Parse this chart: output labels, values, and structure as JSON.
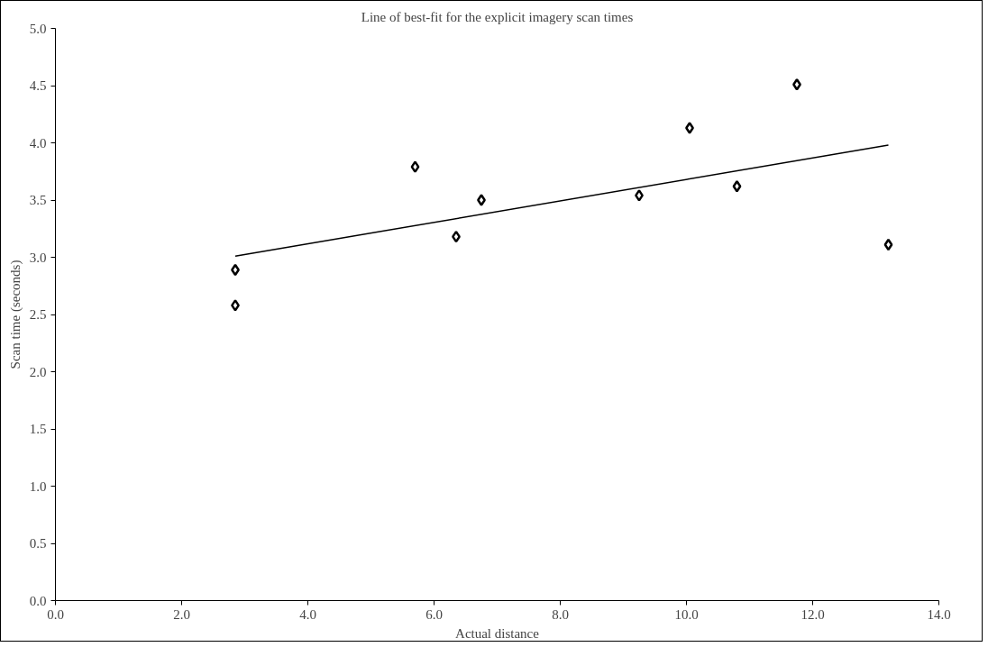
{
  "chart_data": {
    "type": "scatter",
    "title": "Line of best-fit for the explicit imagery scan times",
    "xlabel": "Actual distance",
    "ylabel": "Scan time (seconds)",
    "series": [
      {
        "color": "#000000",
        "marker": "diamond",
        "x": [
          2.85,
          2.85,
          5.7,
          6.35,
          6.75,
          9.25,
          10.05,
          10.8,
          11.75,
          13.2
        ],
        "values": [
          2.89,
          2.58,
          3.79,
          3.18,
          3.5,
          3.54,
          4.13,
          3.62,
          4.51,
          3.11
        ]
      },
      {
        "type": "line",
        "color": "#000000",
        "x": [
          2.85,
          13.2
        ],
        "values": [
          3.01,
          3.98
        ]
      }
    ],
    "xlim": [
      0,
      14
    ],
    "ylim": [
      0,
      5
    ],
    "xticks": [
      {
        "value": 0,
        "label": "0.0"
      },
      {
        "value": 2,
        "label": "2.0"
      },
      {
        "value": 4,
        "label": "4.0"
      },
      {
        "value": 6,
        "label": "6.0"
      },
      {
        "value": 8,
        "label": "8.0"
      },
      {
        "value": 10,
        "label": "10.0"
      },
      {
        "value": 12,
        "label": "12.0"
      },
      {
        "value": 14,
        "label": "14.0"
      }
    ],
    "yticks": [
      {
        "value": 0,
        "label": "0.0"
      },
      {
        "value": 0.5,
        "label": "0.5"
      },
      {
        "value": 1,
        "label": "1.0"
      },
      {
        "value": 1.5,
        "label": "1.5"
      },
      {
        "value": 2,
        "label": "2.0"
      },
      {
        "value": 2.5,
        "label": "2.5"
      },
      {
        "value": 3,
        "label": "3.0"
      },
      {
        "value": 3.5,
        "label": "3.5"
      },
      {
        "value": 4,
        "label": "4.0"
      },
      {
        "value": 4.5,
        "label": "4.5"
      },
      {
        "value": 5,
        "label": "5.0"
      }
    ],
    "grid": false
  }
}
